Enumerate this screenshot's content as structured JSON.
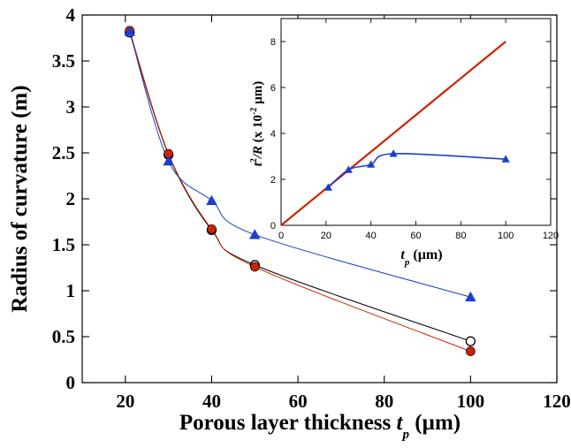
{
  "chart_data": [
    {
      "type": "scatter",
      "title": "",
      "xlabel": {
        "main": "Porous layer thickness ",
        "var": "t",
        "sub": "p",
        "unit": " (µm)"
      },
      "ylabel": "Radius of curvature (m)",
      "xlim": [
        10,
        120
      ],
      "ylim": [
        0,
        4
      ],
      "xticks": [
        "20",
        "40",
        "60",
        "80",
        "100",
        "120"
      ],
      "yticks": [
        "0",
        "0.5",
        "1",
        "1.5",
        "2",
        "2.5",
        "3",
        "3.5",
        "4"
      ],
      "grid": false,
      "series": [
        {
          "marker": "open-circle",
          "color": "#000000",
          "x": [
            21,
            30,
            40,
            50,
            100
          ],
          "y": [
            3.81,
            2.48,
            1.66,
            1.28,
            0.45
          ]
        },
        {
          "marker": "filled-circle",
          "color": "#cc2200",
          "x": [
            21,
            30,
            40,
            50,
            100
          ],
          "y": [
            3.83,
            2.49,
            1.67,
            1.26,
            0.34
          ]
        },
        {
          "marker": "triangle",
          "color": "#1a3fcc",
          "x": [
            21,
            30,
            40,
            50,
            100
          ],
          "y": [
            3.82,
            2.41,
            1.98,
            1.61,
            0.93
          ]
        }
      ]
    },
    {
      "type": "line",
      "title": "",
      "xlabel": {
        "var": "t",
        "sub": "p",
        "unit": " (µm)"
      },
      "ylabel": {
        "var1": "t",
        "sup": "2",
        "var2": "/R",
        "pre": " (x 10",
        "exp": "-2",
        "unit": " µm)"
      },
      "xlim": [
        0,
        120
      ],
      "ylim": [
        0,
        9
      ],
      "xticks": [
        "0",
        "20",
        "40",
        "60",
        "80",
        "100",
        "120"
      ],
      "yticks": [
        "0",
        "2",
        "4",
        "6",
        "8"
      ],
      "grid": false,
      "series": [
        {
          "line": "straight",
          "color": "#cc2200",
          "x": [
            0,
            100
          ],
          "y": [
            0,
            8
          ]
        },
        {
          "marker": "triangle",
          "color": "#1a3fcc",
          "x": [
            21,
            30,
            40,
            50,
            100
          ],
          "y": [
            1.65,
            2.42,
            2.65,
            3.12,
            2.88
          ]
        }
      ]
    }
  ]
}
